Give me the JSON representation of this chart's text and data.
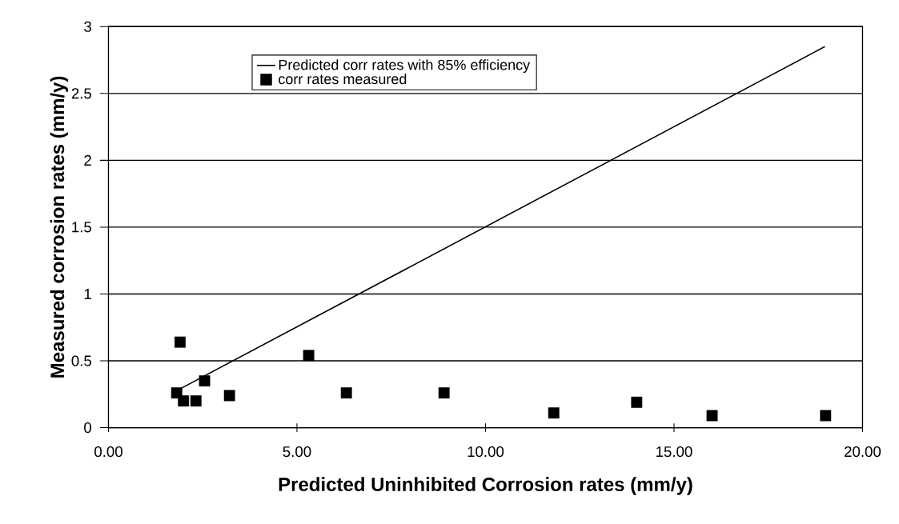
{
  "chart_data": {
    "type": "scatter",
    "xlabel": "Predicted Uninhibited Corrosion rates (mm/y)",
    "ylabel": "Measured corrosion rates (mm/y)",
    "xlim": [
      0,
      20
    ],
    "ylim": [
      0,
      3
    ],
    "xticks": [
      {
        "value": 0,
        "label": "0.00"
      },
      {
        "value": 5,
        "label": "5.00"
      },
      {
        "value": 10,
        "label": "10.00"
      },
      {
        "value": 15,
        "label": "15.00"
      },
      {
        "value": 20,
        "label": "20.00"
      }
    ],
    "yticks": [
      0,
      0.5,
      1,
      1.5,
      2,
      2.5,
      3
    ],
    "grid": "y",
    "legend": "top left",
    "series": [
      {
        "name": "Predicted corr rates with 85% efficiency",
        "type": "line",
        "color": "#000000",
        "marker": "none",
        "line_style": "solid",
        "x": [
          1.9,
          19.0
        ],
        "values": [
          0.29,
          2.85
        ]
      },
      {
        "name": "corr rates measured",
        "color": "#000000",
        "marker": "square",
        "x": [
          1.81,
          1.9,
          1.99,
          2.32,
          2.55,
          3.21,
          5.31,
          6.31,
          8.9,
          11.81,
          14.01,
          16.01,
          19.02
        ],
        "values": [
          0.26,
          0.64,
          0.2,
          0.2,
          0.35,
          0.24,
          0.54,
          0.26,
          0.26,
          0.11,
          0.19,
          0.09,
          0.09
        ]
      }
    ]
  }
}
